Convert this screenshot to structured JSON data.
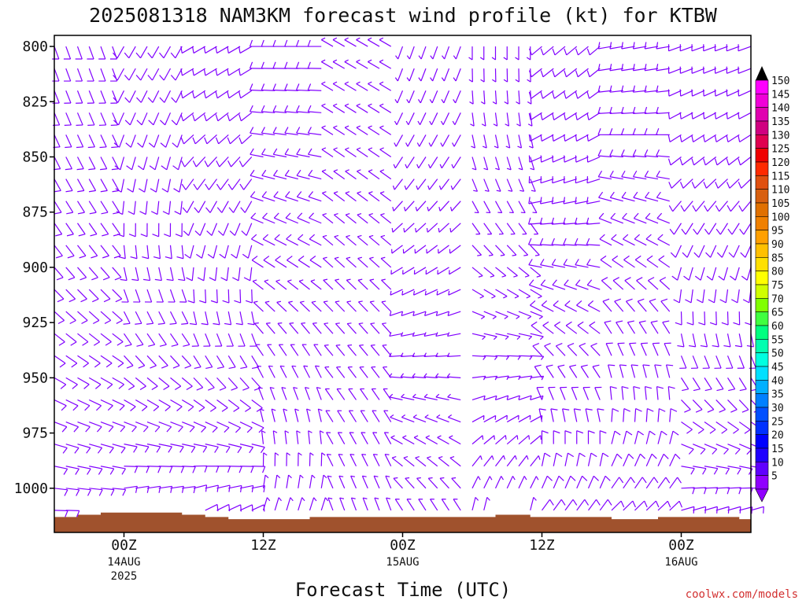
{
  "chart_data": {
    "type": "wind-barb time-height profile",
    "title": "2025081318 NAM3KM forecast wind profile (kt) for KTBW",
    "xlabel": "Forecast Time (UTC)",
    "credit": "coolwx.com/models",
    "x_ticks": [
      {
        "hour": 6,
        "label": "00Z",
        "date": "14AUG",
        "year": "2025"
      },
      {
        "hour": 18,
        "label": "12Z",
        "date": "",
        "year": ""
      },
      {
        "hour": 30,
        "label": "00Z",
        "date": "15AUG",
        "year": ""
      },
      {
        "hour": 42,
        "label": "12Z",
        "date": "",
        "year": ""
      },
      {
        "hour": 54,
        "label": "00Z",
        "date": "16AUG",
        "year": ""
      }
    ],
    "xlim_forecast_hours": [
      0,
      60
    ],
    "y_ticks": [
      "800",
      "825",
      "850",
      "875",
      "900",
      "925",
      "950",
      "975",
      "1000"
    ],
    "ylim_mb": [
      795,
      1020
    ],
    "colorbar_labels": [
      "150",
      "145",
      "140",
      "135",
      "130",
      "125",
      "120",
      "115",
      "110",
      "105",
      "100",
      "95",
      "90",
      "85",
      "80",
      "75",
      "70",
      "65",
      "60",
      "55",
      "50",
      "45",
      "40",
      "35",
      "30",
      "25",
      "20",
      "15",
      "10",
      "5"
    ],
    "colorbar_colors": [
      "#ff00ff",
      "#f000d8",
      "#e000b0",
      "#d00080",
      "#e00050",
      "#f00000",
      "#ff2a00",
      "#e05010",
      "#d86010",
      "#e07000",
      "#f08000",
      "#ffa000",
      "#ffc000",
      "#ffe000",
      "#ffff00",
      "#d0ff00",
      "#80ff00",
      "#40ff40",
      "#00ff80",
      "#00ffb0",
      "#00ffe0",
      "#00e0ff",
      "#00b0ff",
      "#0080ff",
      "#0050ff",
      "#0030ff",
      "#0000ff",
      "#2000ff",
      "#6000ff",
      "#9000ff"
    ],
    "barb_color": "#8000ff",
    "terrain_color": "#a0522d",
    "surface_pressure_mb": [
      1013,
      1013,
      1012,
      1012,
      1011,
      1011,
      1011,
      1011,
      1011,
      1011,
      1011,
      1012,
      1012,
      1013,
      1013,
      1014,
      1014,
      1014,
      1014,
      1014,
      1014,
      1014,
      1013,
      1013,
      1013,
      1013,
      1013,
      1013,
      1013,
      1013,
      1013,
      1013,
      1013,
      1013,
      1013,
      1013,
      1013,
      1013,
      1012,
      1012,
      1012,
      1013,
      1013,
      1013,
      1013,
      1013,
      1013,
      1013,
      1014,
      1014,
      1014,
      1014,
      1013,
      1013,
      1013,
      1013,
      1013,
      1013,
      1013,
      1014,
      1013
    ],
    "wind_regimes": [
      {
        "from_hour": 0,
        "to_hour": 6,
        "surface_dir": 90,
        "surface_spd": 10,
        "aloft_dir": 160,
        "aloft_spd": 10
      },
      {
        "from_hour": 6,
        "to_hour": 12,
        "surface_dir": 70,
        "surface_spd": 10,
        "aloft_dir": 210,
        "aloft_spd": 10
      },
      {
        "from_hour": 12,
        "to_hour": 18,
        "surface_dir": 60,
        "surface_spd": 10,
        "aloft_dir": 240,
        "aloft_spd": 10
      },
      {
        "from_hour": 18,
        "to_hour": 24,
        "surface_dir": 20,
        "surface_spd": 5,
        "aloft_dir": 270,
        "aloft_spd": 10
      },
      {
        "from_hour": 24,
        "to_hour": 30,
        "surface_dir": 340,
        "surface_spd": 5,
        "aloft_dir": 300,
        "aloft_spd": 5
      },
      {
        "from_hour": 30,
        "to_hour": 36,
        "surface_dir": 330,
        "surface_spd": 5,
        "aloft_dir": 200,
        "aloft_spd": 5
      },
      {
        "from_hour": 36,
        "to_hour": 42,
        "surface_dir": 10,
        "surface_spd": 5,
        "aloft_dir": 180,
        "aloft_spd": 5
      },
      {
        "from_hour": 42,
        "to_hour": 48,
        "surface_dir": 40,
        "surface_spd": 10,
        "aloft_dir": 230,
        "aloft_spd": 10
      },
      {
        "from_hour": 48,
        "to_hour": 54,
        "surface_dir": 50,
        "surface_spd": 10,
        "aloft_dir": 260,
        "aloft_spd": 10
      },
      {
        "from_hour": 54,
        "to_hour": 60,
        "surface_dir": 70,
        "surface_spd": 10,
        "aloft_dir": 250,
        "aloft_spd": 10
      }
    ]
  }
}
